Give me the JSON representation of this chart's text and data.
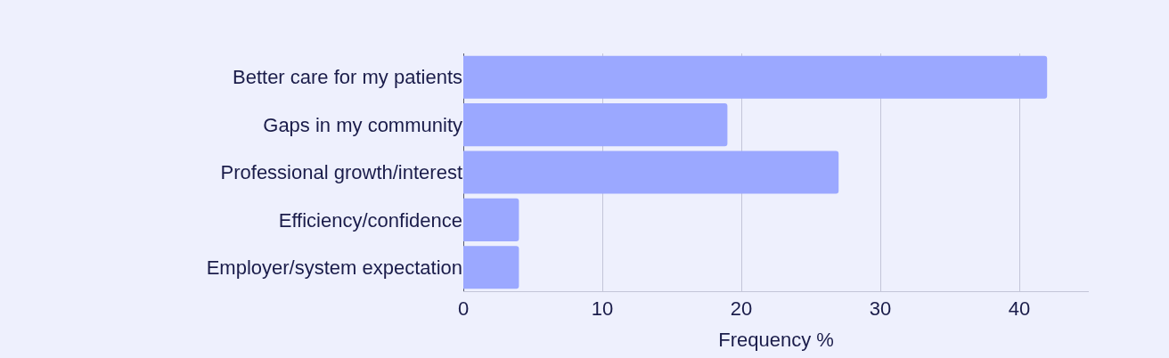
{
  "chart_data": {
    "type": "bar",
    "orientation": "horizontal",
    "xlabel": "Frequency %",
    "categories": [
      "Better care for my patients",
      "Gaps in my community",
      "Professional growth/interest",
      "Efficiency/confidence",
      "Employer/system expectation"
    ],
    "values": [
      42,
      19,
      27,
      4,
      4
    ],
    "color": "#9ba8ff",
    "xlim": [
      0,
      45
    ],
    "xticks": [
      0,
      10,
      20,
      30,
      40
    ],
    "grid": "x",
    "legend": false
  }
}
